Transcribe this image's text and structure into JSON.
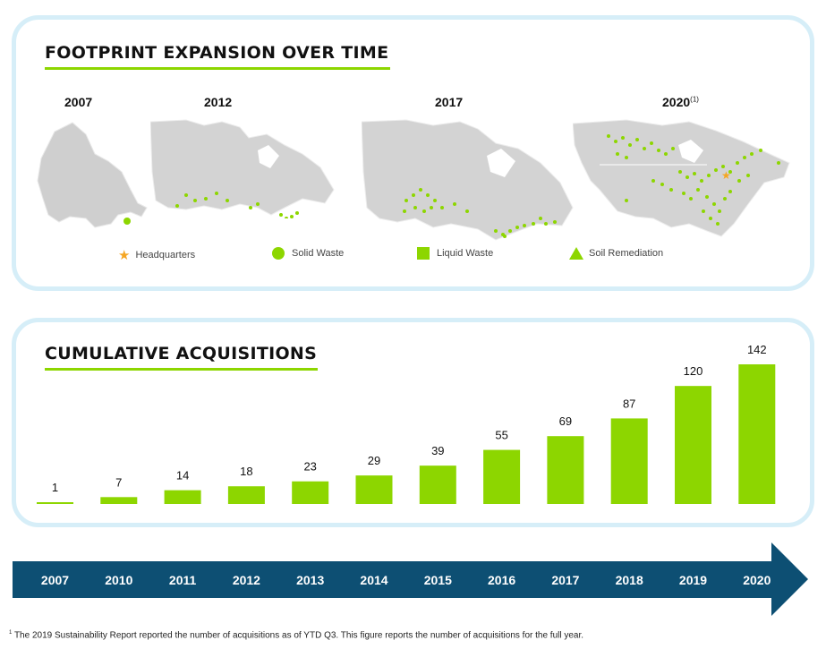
{
  "footprint": {
    "heading": "FOOTPRINT EXPANSION OVER TIME",
    "maps": [
      {
        "year": "2007",
        "footnote": ""
      },
      {
        "year": "2012",
        "footnote": ""
      },
      {
        "year": "2017",
        "footnote": ""
      },
      {
        "year": "2020",
        "footnote": "(1)"
      }
    ],
    "legend": [
      {
        "label": "Headquarters",
        "symbol": "star-icon",
        "color": "#f5a623"
      },
      {
        "label": "Solid Waste",
        "symbol": "circle-icon",
        "color": "#8dd600"
      },
      {
        "label": "Liquid Waste",
        "symbol": "square-icon",
        "color": "#8dd600"
      },
      {
        "label": "Soil Remediation",
        "symbol": "triangle-icon",
        "color": "#8dd600"
      }
    ]
  },
  "acquisitions": {
    "heading": "CUMULATIVE ACQUISITIONS"
  },
  "chart_data": {
    "type": "bar",
    "title": "CUMULATIVE ACQUISITIONS",
    "categories": [
      "2007",
      "2010",
      "2011",
      "2012",
      "2013",
      "2014",
      "2015",
      "2016",
      "2017",
      "2018",
      "2019",
      "2020"
    ],
    "values": [
      1,
      7,
      14,
      18,
      23,
      29,
      39,
      55,
      69,
      87,
      120,
      142
    ],
    "xlabel": "",
    "ylabel": "",
    "ylim": [
      0,
      142
    ],
    "grid": false,
    "bar_color": "#8dd600",
    "timeline_color": "#0d4f73"
  },
  "footnote": {
    "marker": "1",
    "text": "The 2019 Sustainability Report reported the number of acquisitions as of YTD Q3. This figure reports the number of acquisitions for the full year."
  },
  "colors": {
    "accent": "#8dd600",
    "panel_border": "#d6eef8",
    "timeline": "#0d4f73",
    "map_land": "#cfcfcf",
    "hq": "#f5a623"
  }
}
